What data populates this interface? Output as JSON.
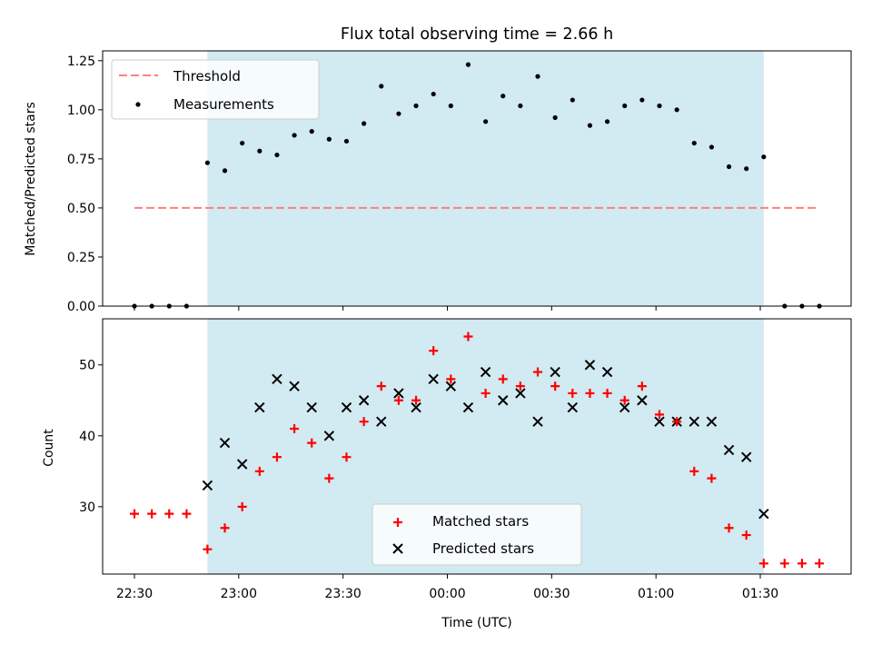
{
  "chart_data": [
    {
      "type": "line",
      "title": "Flux total observing time = 2.66 h",
      "xlabel": "",
      "ylabel": "Matched/Predicted stars",
      "ylim": [
        0,
        1.3
      ],
      "yticks": [
        "0.00",
        "0.25",
        "0.50",
        "0.75",
        "1.00",
        "1.25"
      ],
      "highlight_span": [
        "22:51",
        "01:31"
      ],
      "highlight_color": "#add8e6",
      "legend_position": "upper-left",
      "legend": [
        "Threshold",
        "Measurements"
      ],
      "series": [
        {
          "name": "Threshold",
          "style": "dashed-line",
          "color": "#ff7f7f",
          "x": [
            "22:30",
            "01:47"
          ],
          "values": [
            0.5,
            0.5
          ]
        },
        {
          "name": "Measurements",
          "style": "dot",
          "color": "#000000",
          "x": [
            "22:30",
            "22:35",
            "22:40",
            "22:45",
            "22:51",
            "22:56",
            "23:01",
            "23:06",
            "23:11",
            "23:16",
            "23:21",
            "23:26",
            "23:31",
            "23:36",
            "23:41",
            "23:46",
            "23:51",
            "23:56",
            "00:01",
            "00:06",
            "00:11",
            "00:16",
            "00:21",
            "00:26",
            "00:31",
            "00:36",
            "00:41",
            "00:46",
            "00:51",
            "00:56",
            "01:01",
            "01:06",
            "01:11",
            "01:16",
            "01:21",
            "01:26",
            "01:31",
            "01:37",
            "01:42",
            "01:47"
          ],
          "values": [
            0,
            0,
            0,
            0,
            0.73,
            0.69,
            0.83,
            0.79,
            0.77,
            0.87,
            0.89,
            0.85,
            0.84,
            0.93,
            1.12,
            0.98,
            1.02,
            1.08,
            1.02,
            1.23,
            0.94,
            1.07,
            1.02,
            1.17,
            0.96,
            1.05,
            0.92,
            0.94,
            1.02,
            1.05,
            1.02,
            1.0,
            0.83,
            0.81,
            0.71,
            0.7,
            0.76,
            0,
            0,
            0
          ]
        }
      ]
    },
    {
      "type": "scatter",
      "title": "",
      "xlabel": "Time (UTC)",
      "ylabel": "Count",
      "ylim": [
        20.5,
        56.5
      ],
      "yticks": [
        "30",
        "40",
        "50"
      ],
      "xticks": [
        "22:30",
        "23:00",
        "23:30",
        "00:00",
        "00:30",
        "01:00",
        "01:30"
      ],
      "highlight_span": [
        "22:51",
        "01:31"
      ],
      "highlight_color": "#add8e6",
      "legend_position": "lower-center",
      "legend": [
        "Matched stars",
        "Predicted stars"
      ],
      "series": [
        {
          "name": "Matched stars",
          "marker": "plus",
          "color": "#ff0000",
          "x": [
            "22:30",
            "22:35",
            "22:40",
            "22:45",
            "22:51",
            "22:56",
            "23:01",
            "23:06",
            "23:11",
            "23:16",
            "23:21",
            "23:26",
            "23:31",
            "23:36",
            "23:41",
            "23:46",
            "23:51",
            "23:56",
            "00:01",
            "00:06",
            "00:11",
            "00:16",
            "00:21",
            "00:26",
            "00:31",
            "00:36",
            "00:41",
            "00:46",
            "00:51",
            "00:56",
            "01:01",
            "01:06",
            "01:11",
            "01:16",
            "01:21",
            "01:26",
            "01:31",
            "01:37",
            "01:42",
            "01:47"
          ],
          "values": [
            29,
            29,
            29,
            29,
            24,
            27,
            30,
            35,
            37,
            41,
            39,
            34,
            37,
            42,
            47,
            45,
            45,
            52,
            48,
            54,
            46,
            48,
            47,
            49,
            47,
            46,
            46,
            46,
            45,
            47,
            43,
            42,
            35,
            34,
            27,
            26,
            22,
            22,
            22,
            22
          ]
        },
        {
          "name": "Predicted stars",
          "marker": "x",
          "color": "#000000",
          "x": [
            "22:51",
            "22:56",
            "23:01",
            "23:06",
            "23:11",
            "23:16",
            "23:21",
            "23:26",
            "23:31",
            "23:36",
            "23:41",
            "23:46",
            "23:51",
            "23:56",
            "00:01",
            "00:06",
            "00:11",
            "00:16",
            "00:21",
            "00:26",
            "00:31",
            "00:36",
            "00:41",
            "00:46",
            "00:51",
            "00:56",
            "01:01",
            "01:06",
            "01:11",
            "01:16",
            "01:21",
            "01:26",
            "01:31"
          ],
          "values": [
            33,
            39,
            36,
            44,
            48,
            47,
            44,
            40,
            44,
            45,
            42,
            46,
            44,
            48,
            47,
            44,
            49,
            45,
            46,
            42,
            49,
            44,
            50,
            49,
            44,
            45,
            42,
            42,
            42,
            42,
            38,
            37,
            29
          ]
        }
      ]
    }
  ]
}
